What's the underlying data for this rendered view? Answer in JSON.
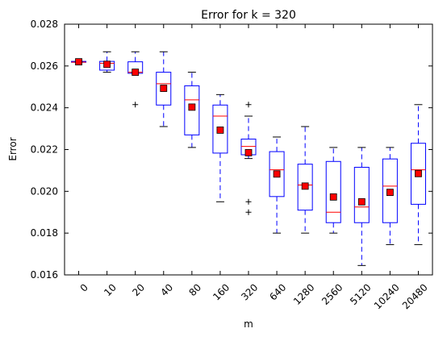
{
  "chart_data": {
    "type": "box",
    "title": "Error for k = 320",
    "xlabel": "m",
    "ylabel": "Error",
    "ylim": [
      0.016,
      0.028
    ],
    "yticks": [
      "0.016",
      "0.018",
      "0.020",
      "0.022",
      "0.024",
      "0.026",
      "0.028"
    ],
    "categories": [
      "0",
      "10",
      "20",
      "40",
      "80",
      "160",
      "320",
      "640",
      "1280",
      "2560",
      "5120",
      "10240",
      "20480"
    ],
    "boxes": [
      {
        "whislo": 0.02618,
        "q1": 0.02618,
        "med": 0.02618,
        "q3": 0.02622,
        "whishi": 0.02622,
        "mean": 0.0262,
        "fliers": []
      },
      {
        "whislo": 0.0257,
        "q1": 0.0258,
        "med": 0.02613,
        "q3": 0.02622,
        "whishi": 0.02668,
        "mean": 0.02608,
        "fliers": []
      },
      {
        "whislo": 0.02565,
        "q1": 0.02565,
        "med": 0.0257,
        "q3": 0.0262,
        "whishi": 0.02668,
        "mean": 0.0257,
        "fliers": [
          0.02415
        ]
      },
      {
        "whislo": 0.0231,
        "q1": 0.02413,
        "med": 0.02515,
        "q3": 0.0257,
        "whishi": 0.02668,
        "mean": 0.02493,
        "fliers": []
      },
      {
        "whislo": 0.0221,
        "q1": 0.0227,
        "med": 0.02438,
        "q3": 0.02505,
        "whishi": 0.0257,
        "mean": 0.02403,
        "fliers": []
      },
      {
        "whislo": 0.0195,
        "q1": 0.02183,
        "med": 0.0236,
        "q3": 0.02413,
        "whishi": 0.02463,
        "mean": 0.02293,
        "fliers": []
      },
      {
        "whislo": 0.02157,
        "q1": 0.02175,
        "med": 0.02215,
        "q3": 0.0225,
        "whishi": 0.0236,
        "mean": 0.02185,
        "fliers": [
          0.02415,
          0.0195,
          0.019
        ]
      },
      {
        "whislo": 0.018,
        "q1": 0.01975,
        "med": 0.02103,
        "q3": 0.0219,
        "whishi": 0.0226,
        "mean": 0.02083,
        "fliers": []
      },
      {
        "whislo": 0.018,
        "q1": 0.0191,
        "med": 0.0203,
        "q3": 0.0213,
        "whishi": 0.0231,
        "mean": 0.02025,
        "fliers": []
      },
      {
        "whislo": 0.018,
        "q1": 0.0185,
        "med": 0.019,
        "q3": 0.02143,
        "whishi": 0.0221,
        "mean": 0.01973,
        "fliers": []
      },
      {
        "whislo": 0.01645,
        "q1": 0.0185,
        "med": 0.01925,
        "q3": 0.02115,
        "whishi": 0.0221,
        "mean": 0.0195,
        "fliers": []
      },
      {
        "whislo": 0.01745,
        "q1": 0.0185,
        "med": 0.02025,
        "q3": 0.02155,
        "whishi": 0.0221,
        "mean": 0.01995,
        "fliers": []
      },
      {
        "whislo": 0.01745,
        "q1": 0.01938,
        "med": 0.02103,
        "q3": 0.0223,
        "whishi": 0.02415,
        "mean": 0.02085,
        "fliers": []
      }
    ],
    "colors": {
      "box": "#0000ff",
      "median": "#ff0000",
      "mean_fill": "#ff0000",
      "mean_edge": "#000000",
      "flier": "#000000",
      "whisker": "#0000ff"
    },
    "grid": false
  }
}
